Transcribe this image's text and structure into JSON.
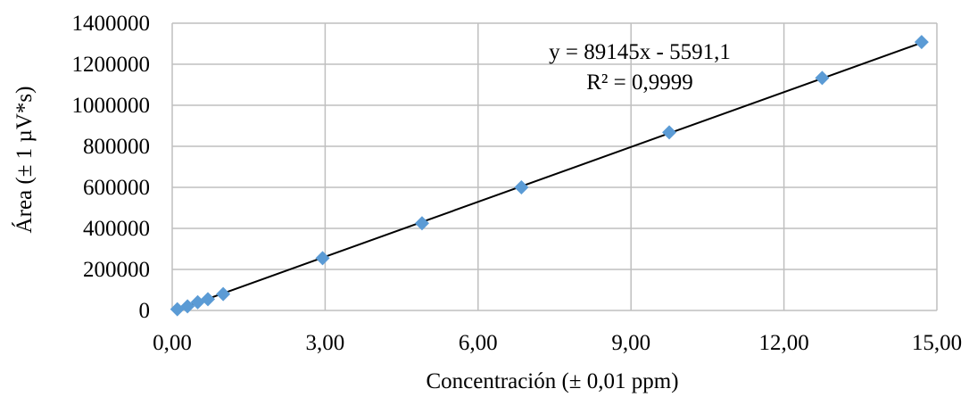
{
  "chart_data": {
    "type": "scatter",
    "title": "",
    "xlabel": "Concentración (± 0,01 ppm)",
    "ylabel": "Área (± 1 µV*s)",
    "xlim": [
      0,
      15
    ],
    "ylim": [
      0,
      1400000
    ],
    "x_ticks": [
      "0,00",
      "3,00",
      "6,00",
      "9,00",
      "12,00",
      "15,00"
    ],
    "y_ticks": [
      "0",
      "200000",
      "400000",
      "600000",
      "800000",
      "1000000",
      "1200000",
      "1400000"
    ],
    "grid": true,
    "marker_color": "#5b9bd5",
    "trendline_color": "#000000",
    "series": [
      {
        "points": [
          {
            "x": 0.1,
            "y": 6000
          },
          {
            "x": 0.3,
            "y": 20000
          },
          {
            "x": 0.5,
            "y": 40000
          },
          {
            "x": 0.7,
            "y": 55000
          },
          {
            "x": 1.0,
            "y": 80000
          },
          {
            "x": 2.95,
            "y": 255000
          },
          {
            "x": 4.9,
            "y": 425000
          },
          {
            "x": 6.85,
            "y": 600000
          },
          {
            "x": 9.75,
            "y": 868000
          },
          {
            "x": 12.75,
            "y": 1133000
          },
          {
            "x": 14.7,
            "y": 1308000
          }
        ]
      }
    ],
    "trendline": {
      "type": "linear",
      "slope": 89145,
      "intercept": -5591.1,
      "x_range": [
        0.1,
        14.7
      ],
      "equation": "y = 89145x - 5591,1",
      "r2": "R² = 0,9999"
    }
  }
}
